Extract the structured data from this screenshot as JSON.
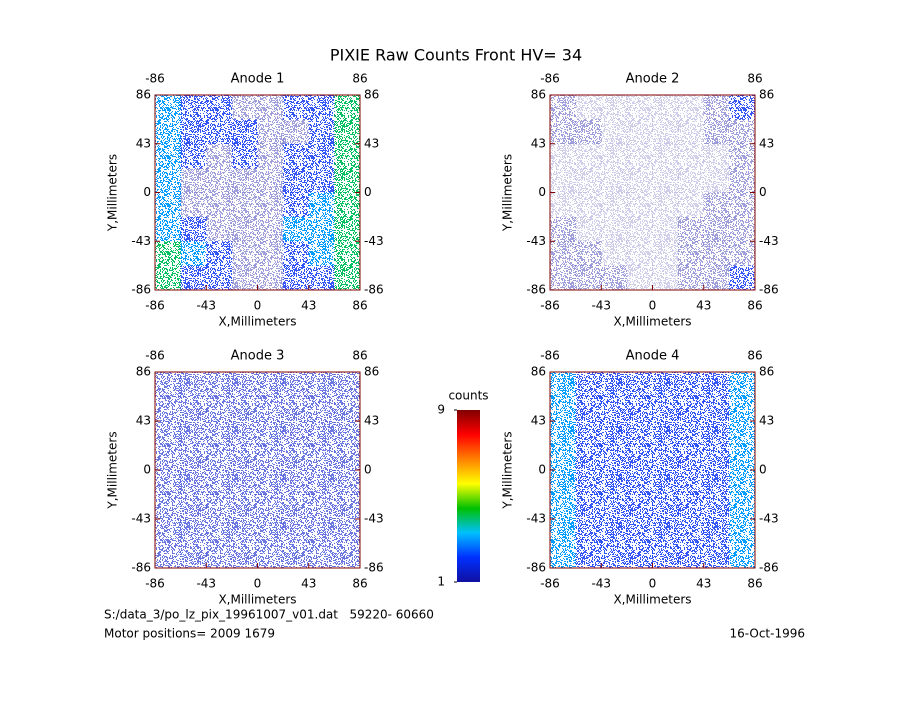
{
  "title": "PIXIE Raw Counts Front HV= 34",
  "chart_data": [
    {
      "type": "heatmap",
      "title": "Anode 1",
      "x_label": "X,Millimeters",
      "y_label": "Y,Millimeters",
      "xlim": [
        -86,
        86
      ],
      "ylim": [
        -86,
        86
      ],
      "xticks": [
        -86,
        -43,
        0,
        43,
        86
      ],
      "yticks": [
        -86,
        -43,
        0,
        43,
        86
      ],
      "x2ticks": [
        -86,
        86
      ],
      "y2ticks": [
        -86,
        -43,
        0,
        43,
        86
      ],
      "z": [
        [
          3,
          2,
          2,
          1,
          1,
          2,
          2,
          4
        ],
        [
          3,
          2,
          2,
          2,
          1,
          1,
          2,
          4
        ],
        [
          3,
          2,
          1,
          2,
          1,
          2,
          2,
          4
        ],
        [
          3,
          1,
          1,
          1,
          1,
          2,
          2,
          4
        ],
        [
          3,
          1,
          1,
          1,
          1,
          2,
          3,
          4
        ],
        [
          3,
          2,
          1,
          1,
          1,
          3,
          3,
          4
        ],
        [
          4,
          3,
          2,
          1,
          1,
          2,
          3,
          4
        ],
        [
          4,
          2,
          2,
          1,
          1,
          2,
          2,
          4
        ]
      ]
    },
    {
      "type": "heatmap",
      "title": "Anode 2",
      "x_label": "X,Millimeters",
      "y_label": "Y,Millimeters",
      "xlim": [
        -86,
        86
      ],
      "ylim": [
        -86,
        86
      ],
      "xticks": [
        -86,
        -43,
        0,
        43,
        86
      ],
      "yticks": [
        -86,
        -43,
        0,
        43,
        86
      ],
      "x2ticks": [
        -86,
        86
      ],
      "y2ticks": [
        -86,
        -43,
        0,
        43,
        86
      ],
      "z": [
        [
          1,
          0.5,
          0.5,
          0.5,
          0.5,
          0.5,
          1,
          2
        ],
        [
          1,
          1,
          0.5,
          0.5,
          0.5,
          0.5,
          1,
          1
        ],
        [
          0.5,
          0.5,
          0.5,
          0.5,
          0.5,
          0.5,
          0.5,
          1
        ],
        [
          0.5,
          0.5,
          0.5,
          0.5,
          0.5,
          0.5,
          0.5,
          1
        ],
        [
          0.5,
          0.5,
          0.5,
          0.5,
          0.5,
          0.5,
          1,
          1
        ],
        [
          1,
          0.5,
          0.5,
          0.5,
          0.5,
          1,
          1,
          1
        ],
        [
          1,
          1,
          0.5,
          0.5,
          0.5,
          1,
          1,
          1
        ],
        [
          1,
          1,
          1,
          0.5,
          0.5,
          1,
          1,
          2
        ]
      ]
    },
    {
      "type": "heatmap",
      "title": "Anode 3",
      "x_label": "X,Millimeters",
      "y_label": "Y,Millimeters",
      "xlim": [
        -86,
        86
      ],
      "ylim": [
        -86,
        86
      ],
      "xticks": [
        -86,
        -43,
        0,
        43,
        86
      ],
      "yticks": [
        -86,
        -43,
        0,
        43,
        86
      ],
      "x2ticks": [
        -86,
        86
      ],
      "y2ticks": [
        -86,
        -43,
        0,
        43,
        86
      ],
      "z": [
        [
          1.5,
          1.5,
          1.5,
          1.5,
          1.5,
          1.5,
          1.5,
          1.5
        ],
        [
          1.5,
          1.5,
          1.5,
          1.5,
          1.5,
          1.5,
          1.5,
          1.5
        ],
        [
          1.5,
          1.5,
          1.5,
          1.5,
          1.5,
          1.5,
          1.5,
          1.5
        ],
        [
          1.5,
          1.5,
          1.5,
          1.5,
          1.5,
          1.5,
          1.5,
          1.5
        ],
        [
          1.5,
          1.5,
          1.5,
          1.5,
          1.5,
          1.5,
          1.5,
          1.5
        ],
        [
          1.5,
          1.5,
          1.5,
          1.5,
          1.5,
          1.5,
          1.5,
          1.5
        ],
        [
          1.5,
          1.5,
          1.5,
          1.5,
          1.5,
          1.5,
          1.5,
          1.5
        ],
        [
          1.5,
          1.5,
          1.5,
          1.5,
          1.5,
          1.5,
          1.5,
          1.5
        ]
      ]
    },
    {
      "type": "heatmap",
      "title": "Anode 4",
      "x_label": "X,Millimeters",
      "y_label": "Y,Millimeters",
      "xlim": [
        -86,
        86
      ],
      "ylim": [
        -86,
        86
      ],
      "xticks": [
        -86,
        -43,
        0,
        43,
        86
      ],
      "yticks": [
        -86,
        -43,
        0,
        43,
        86
      ],
      "x2ticks": [
        -86,
        86
      ],
      "y2ticks": [
        -86,
        -43,
        0,
        43,
        86
      ],
      "z": [
        [
          3,
          2,
          2,
          2,
          2,
          2,
          2,
          3
        ],
        [
          3,
          2,
          2,
          2,
          2,
          2,
          2,
          3
        ],
        [
          3,
          2,
          2,
          2,
          2,
          2,
          2,
          3
        ],
        [
          3,
          2,
          2,
          2,
          2,
          2,
          2,
          3
        ],
        [
          3,
          2,
          2,
          2,
          2,
          2,
          2,
          3
        ],
        [
          3,
          2,
          2,
          2,
          2,
          2,
          2,
          3
        ],
        [
          3,
          2,
          2,
          2,
          2,
          2,
          2,
          3
        ],
        [
          3,
          2,
          2,
          2,
          2,
          2,
          2,
          3
        ]
      ]
    }
  ],
  "colorbar": {
    "label": "counts",
    "lim": [
      1,
      9
    ],
    "ticks": [
      1,
      9
    ],
    "colors": [
      "#1010a0",
      "#0030ff",
      "#00c0ff",
      "#00c000",
      "#ffff00",
      "#ff8000",
      "#ff0000",
      "#800000"
    ]
  },
  "footer": {
    "file": "S:/data_3/po_lz_pix_19961007_v01.dat   59220- 60660",
    "motor": "Motor positions= 2009 1679",
    "date": "16-Oct-1996"
  }
}
